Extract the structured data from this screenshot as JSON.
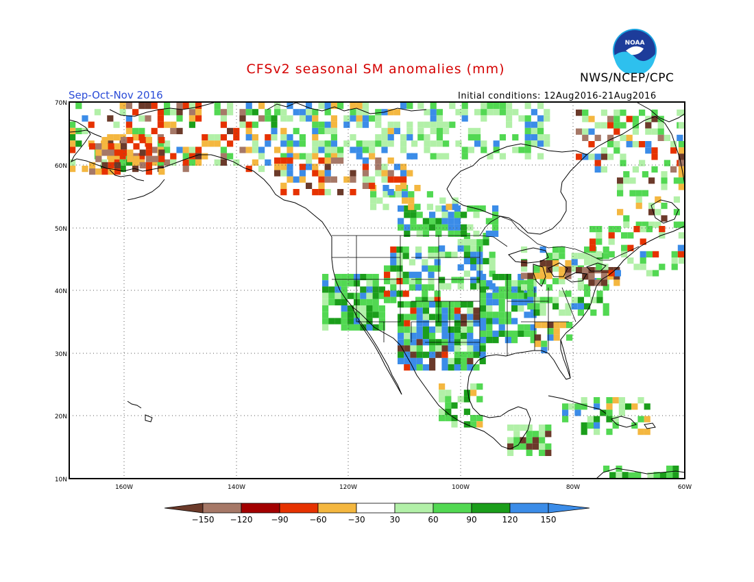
{
  "header": {
    "title": "CFSv2 seasonal SM anomalies (mm)",
    "agency": "NWS/NCEP/CPC",
    "logo_text": "NOAA",
    "season": "Sep-Oct-Nov 2016",
    "initial_conditions": "Initial conditions: 12Aug2016-21Aug2016"
  },
  "map": {
    "lat_labels": [
      "70N",
      "60N",
      "50N",
      "40N",
      "30N",
      "20N",
      "10N"
    ],
    "lon_labels": [
      "160W",
      "140W",
      "120W",
      "100W",
      "80W",
      "60W"
    ],
    "extent": {
      "lon_min": -172,
      "lon_max": -60,
      "lat_min": 10,
      "lat_max": 70
    },
    "grid": "dotted"
  },
  "colorbar": {
    "labels": [
      "-150",
      "-120",
      "-90",
      "-60",
      "-30",
      "30",
      "60",
      "90",
      "120",
      "150"
    ],
    "colors": [
      "#6b3a2a",
      "#a67867",
      "#a30000",
      "#e63200",
      "#f4b740",
      "#ffffff",
      "#b2f0a8",
      "#52d852",
      "#1b9e1b",
      "#3b8ce8",
      "#3b8ce8"
    ]
  }
}
